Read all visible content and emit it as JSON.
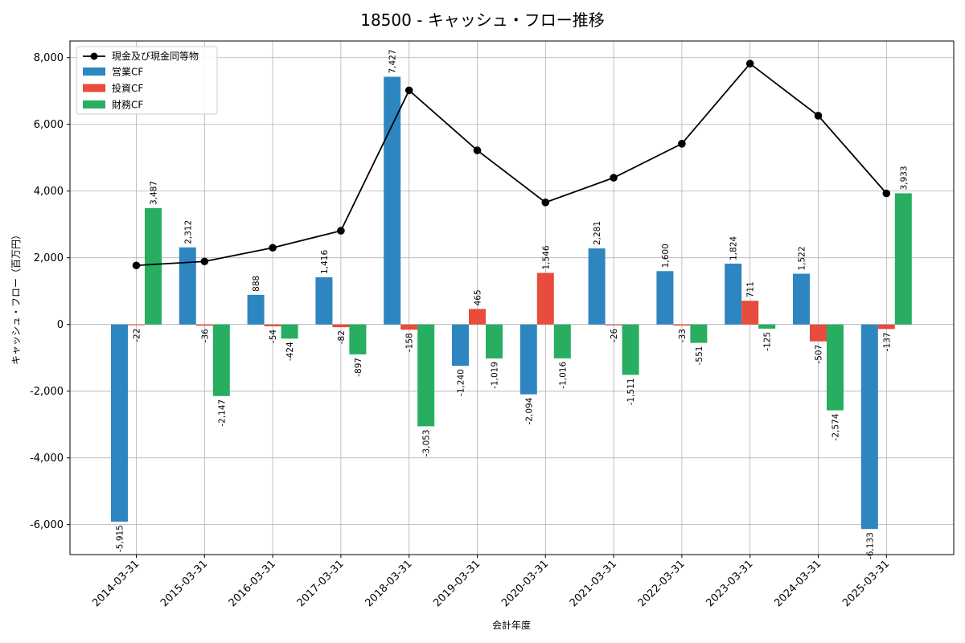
{
  "chart_data": {
    "type": "bar",
    "title": "18500 - キャッシュ・フロー推移",
    "xlabel": "会計年度",
    "ylabel": "キャッシュ・フロー（百万円）",
    "categories": [
      "2014-03-31",
      "2015-03-31",
      "2016-03-31",
      "2017-03-31",
      "2018-03-31",
      "2019-03-31",
      "2020-03-31",
      "2021-03-31",
      "2022-03-31",
      "2023-03-31",
      "2024-03-31",
      "2025-03-31"
    ],
    "ylim": [
      -6900,
      8500
    ],
    "yticks": [
      -6000,
      -4000,
      -2000,
      0,
      2000,
      4000,
      6000,
      8000
    ],
    "ytick_labels": [
      "-6,000",
      "-4,000",
      "-2,000",
      "0",
      "2,000",
      "4,000",
      "6,000",
      "8,000"
    ],
    "grid": true,
    "legend_position": "top-left",
    "series": [
      {
        "name": "営業CF",
        "type": "bar",
        "color": "#2e86c1",
        "values": [
          -5915,
          2312,
          888,
          1416,
          7427,
          -1240,
          -2094,
          2281,
          1600,
          1824,
          1522,
          -6133
        ],
        "labels": [
          "-5,915",
          "2,312",
          "888",
          "1,416",
          "7,427",
          "-1,240",
          "-2,094",
          "2,281",
          "1,600",
          "1,824",
          "1,522",
          "-6,133"
        ]
      },
      {
        "name": "投資CF",
        "type": "bar",
        "color": "#e74c3c",
        "values": [
          -22,
          -36,
          -54,
          -82,
          -158,
          465,
          1546,
          -26,
          -33,
          711,
          -507,
          -137
        ],
        "labels": [
          "-22",
          "-36",
          "-54",
          "-82",
          "-158",
          "465",
          "1,546",
          "-26",
          "-33",
          "711",
          "-507",
          "-137"
        ]
      },
      {
        "name": "財務CF",
        "type": "bar",
        "color": "#27ae60",
        "values": [
          3487,
          -2147,
          -424,
          -897,
          -3053,
          -1019,
          -1016,
          -1511,
          -551,
          -125,
          -2574,
          3933
        ],
        "labels": [
          "3,487",
          "-2,147",
          "-424",
          "-897",
          "-3,053",
          "-1,019",
          "-1,016",
          "-1,511",
          "-551",
          "-125",
          "-2,574",
          "3,933"
        ]
      },
      {
        "name": "現金及び現金同等物",
        "type": "line",
        "color": "#000000",
        "values": [
          1770,
          1890,
          2300,
          2810,
          7020,
          5220,
          3660,
          4400,
          5420,
          7820,
          6260,
          3930
        ]
      }
    ]
  }
}
